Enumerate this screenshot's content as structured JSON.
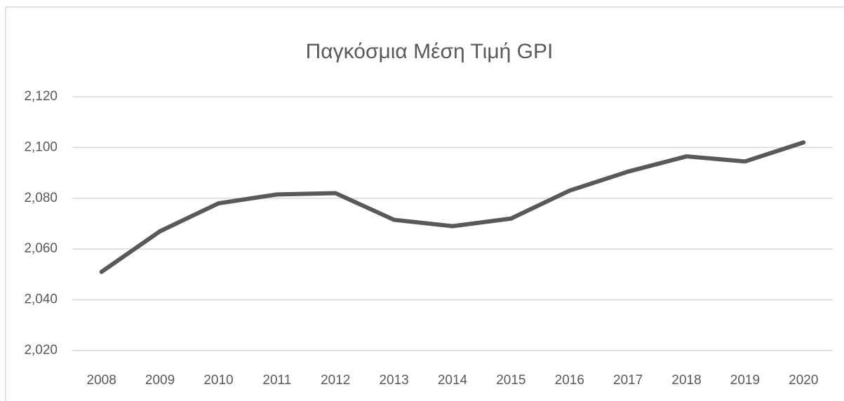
{
  "chart_data": {
    "type": "line",
    "title": "Παγκόσμια Μέση Τιμή GPI",
    "categories": [
      "2008",
      "2009",
      "2010",
      "2011",
      "2012",
      "2013",
      "2014",
      "2015",
      "2016",
      "2017",
      "2018",
      "2019",
      "2020"
    ],
    "series": [
      {
        "name": "GPI",
        "color": "#595959",
        "values": [
          2.051,
          2.067,
          2.078,
          2.0815,
          2.082,
          2.0715,
          2.069,
          2.072,
          2.083,
          2.0905,
          2.0965,
          2.0945,
          2.102
        ]
      }
    ],
    "ylim": [
      2.02,
      2.12
    ],
    "yticks": [
      {
        "value": 2.02,
        "label": "2,020"
      },
      {
        "value": 2.04,
        "label": "2,040"
      },
      {
        "value": 2.06,
        "label": "2,060"
      },
      {
        "value": 2.08,
        "label": "2,080"
      },
      {
        "value": 2.1,
        "label": "2,100"
      },
      {
        "value": 2.12,
        "label": "2,120"
      }
    ],
    "grid": true
  }
}
